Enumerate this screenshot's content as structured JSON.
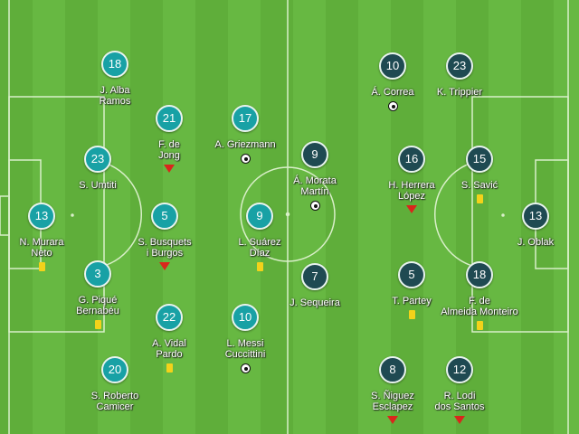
{
  "colors": {
    "home": "#18a1a5",
    "away": "#1f4a52",
    "pitch_light": "#67b842",
    "pitch_dark": "#5fae3a"
  },
  "home": [
    {
      "number": "18",
      "name": [
        "J. Alba",
        "Ramos"
      ],
      "event": ""
    },
    {
      "number": "21",
      "name": [
        "F. de",
        "Jong"
      ],
      "event": "substituted"
    },
    {
      "number": "17",
      "name": [
        "A. Griezmann"
      ],
      "event": "goal"
    },
    {
      "number": "23",
      "name": [
        "S. Umtiti"
      ],
      "event": ""
    },
    {
      "number": "13",
      "name": [
        "N. Murara",
        "Neto"
      ],
      "event": "yellow-card"
    },
    {
      "number": "5",
      "name": [
        "S. Busquets",
        "i Burgos"
      ],
      "event": "substituted"
    },
    {
      "number": "9",
      "name": [
        "L. Suárez",
        "Díaz"
      ],
      "event": "yellow-card"
    },
    {
      "number": "3",
      "name": [
        "G. Piqué",
        "Bernabéu"
      ],
      "event": "yellow-card"
    },
    {
      "number": "22",
      "name": [
        "A. Vidal",
        "Pardo"
      ],
      "event": "yellow-card"
    },
    {
      "number": "10",
      "name": [
        "L. Messi",
        "Cuccittini"
      ],
      "event": "goal"
    },
    {
      "number": "20",
      "name": [
        "S. Roberto",
        "Camicer"
      ],
      "event": ""
    }
  ],
  "away": [
    {
      "number": "10",
      "name": [
        "Á. Correa"
      ],
      "event": "goal"
    },
    {
      "number": "23",
      "name": [
        "K. Trippier"
      ],
      "event": ""
    },
    {
      "number": "9",
      "name": [
        "Á. Morata",
        "Martín"
      ],
      "event": "goal"
    },
    {
      "number": "16",
      "name": [
        "H. Herrera",
        "López"
      ],
      "event": "substituted"
    },
    {
      "number": "15",
      "name": [
        "S. Savić"
      ],
      "event": "yellow-card"
    },
    {
      "number": "13",
      "name": [
        "J. Oblak"
      ],
      "event": ""
    },
    {
      "number": "7",
      "name": [
        "J. Sequeira"
      ],
      "event": ""
    },
    {
      "number": "5",
      "name": [
        "T. Partey"
      ],
      "event": "yellow-card"
    },
    {
      "number": "18",
      "name": [
        "F. de",
        "Almeida Monteiro"
      ],
      "event": "yellow-card"
    },
    {
      "number": "8",
      "name": [
        "S. Ñiguez",
        "Esclapez"
      ],
      "event": "substituted"
    },
    {
      "number": "12",
      "name": [
        "R. Lodi",
        "dos Santos"
      ],
      "event": "substituted"
    }
  ]
}
